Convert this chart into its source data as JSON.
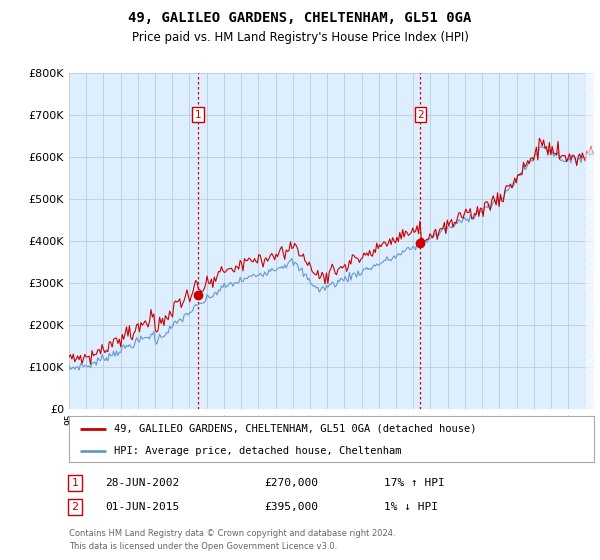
{
  "title": "49, GALILEO GARDENS, CHELTENHAM, GL51 0GA",
  "subtitle": "Price paid vs. HM Land Registry's House Price Index (HPI)",
  "ylim": [
    0,
    800000
  ],
  "xlim_start": 1995.0,
  "xlim_end": 2025.5,
  "sale1_date": "28-JUN-2002",
  "sale1_price": 270000,
  "sale1_pct": "17% ↑ HPI",
  "sale1_x": 2002.5,
  "sale2_date": "01-JUN-2015",
  "sale2_price": 395000,
  "sale2_pct": "1% ↓ HPI",
  "sale2_x": 2015.42,
  "legend_line1": "49, GALILEO GARDENS, CHELTENHAM, GL51 0GA (detached house)",
  "legend_line2": "HPI: Average price, detached house, Cheltenham",
  "footer1": "Contains HM Land Registry data © Crown copyright and database right 2024.",
  "footer2": "This data is licensed under the Open Government Licence v3.0.",
  "red_color": "#cc0000",
  "blue_color": "#6699cc",
  "chart_bg": "#ddeeff",
  "background_color": "#ffffff",
  "grid_color": "#bbccdd",
  "fig_width": 6.0,
  "fig_height": 5.6,
  "dpi": 100
}
